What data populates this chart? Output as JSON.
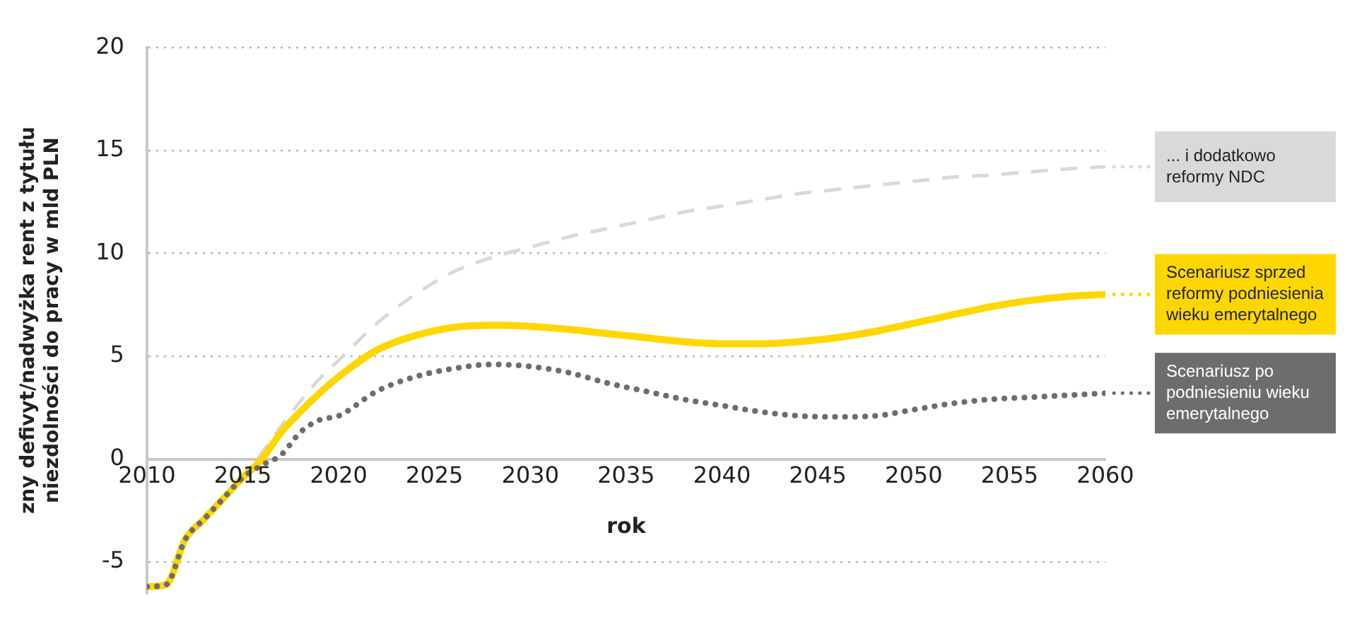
{
  "chart_data": {
    "type": "line",
    "xlabel": "rok",
    "ylabel": "zny defivyt/nadwyżka rent z tytułu niezdolności do pracy w mld PLN",
    "x": [
      2010,
      2011,
      2012,
      2013,
      2014,
      2015,
      2016,
      2017,
      2018,
      2019,
      2020,
      2022,
      2024,
      2026,
      2028,
      2030,
      2032,
      2034,
      2036,
      2038,
      2040,
      2042,
      2044,
      2046,
      2048,
      2050,
      2052,
      2054,
      2056,
      2058,
      2060
    ],
    "series": [
      {
        "name": "... i dodatkowo reformy NDC",
        "color": "#d9d9d9",
        "line_style": "dashed",
        "values": [
          -6.2,
          -6.1,
          -3.9,
          -2.9,
          -1.9,
          -0.9,
          0.3,
          1.6,
          2.8,
          3.9,
          4.8,
          6.6,
          8.0,
          9.1,
          9.8,
          10.3,
          10.8,
          11.2,
          11.6,
          12.0,
          12.3,
          12.6,
          12.9,
          13.1,
          13.3,
          13.5,
          13.7,
          13.8,
          13.95,
          14.1,
          14.2
        ]
      },
      {
        "name": "Scenariusz sprzed reformy podniesienia wieku emerytalnego",
        "color": "#ffd700",
        "line_style": "solid",
        "values": [
          -6.2,
          -6.1,
          -3.9,
          -2.9,
          -1.9,
          -0.9,
          0.0,
          1.3,
          2.3,
          3.2,
          4.0,
          5.3,
          6.0,
          6.4,
          6.5,
          6.45,
          6.3,
          6.1,
          5.9,
          5.7,
          5.6,
          5.6,
          5.7,
          5.9,
          6.2,
          6.6,
          7.0,
          7.4,
          7.7,
          7.9,
          8.0
        ]
      },
      {
        "name": "Scenariusz po podniesieniu wieku emerytalnego",
        "color": "#6d6d6d",
        "line_style": "dotted",
        "values": [
          -6.2,
          -6.1,
          -3.9,
          -2.9,
          -1.9,
          -0.9,
          -0.3,
          0.2,
          1.3,
          1.9,
          2.1,
          3.3,
          4.0,
          4.4,
          4.6,
          4.5,
          4.2,
          3.7,
          3.3,
          2.9,
          2.6,
          2.3,
          2.1,
          2.05,
          2.1,
          2.4,
          2.7,
          2.9,
          3.0,
          3.1,
          3.2
        ]
      }
    ],
    "xlim": [
      2010,
      2060
    ],
    "xticks": [
      2010,
      2015,
      2020,
      2025,
      2030,
      2035,
      2040,
      2045,
      2050,
      2055,
      2060
    ],
    "ylim": [
      -6.5,
      20
    ],
    "yticks": [
      -5,
      0,
      5,
      10,
      15,
      20
    ],
    "grid": "y",
    "legend": "right"
  }
}
